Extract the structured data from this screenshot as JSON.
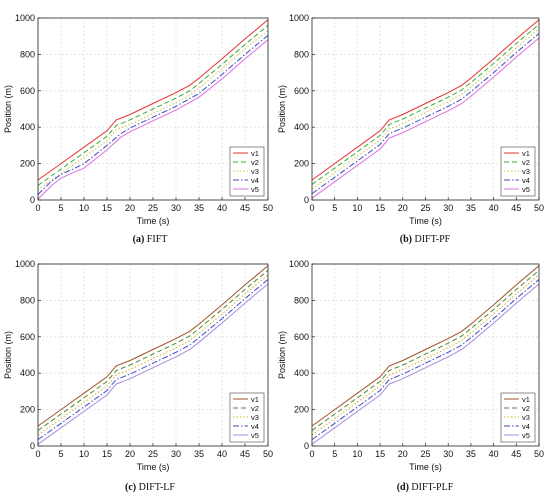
{
  "chart_data": [
    {
      "type": "line",
      "caption_letter": "(a)",
      "caption_name": "FIFT",
      "xlabel": "Time (s)",
      "ylabel": "Position (m)",
      "xlim": [
        0,
        50
      ],
      "ylim": [
        0,
        1000
      ],
      "xticks": [
        0,
        5,
        10,
        15,
        20,
        25,
        30,
        35,
        40,
        45,
        50
      ],
      "yticks": [
        0,
        200,
        400,
        600,
        800,
        1000
      ],
      "grid": true,
      "legend": "bottom-right",
      "series": [
        {
          "name": "v1",
          "color": "#e8322f",
          "dash": "solid",
          "x": [
            0,
            5,
            10,
            15,
            17,
            20,
            25,
            30,
            33,
            35,
            40,
            45,
            50
          ],
          "y": [
            110,
            200,
            290,
            380,
            440,
            470,
            530,
            590,
            630,
            670,
            775,
            885,
            990
          ]
        },
        {
          "name": "v2",
          "color": "#3aaa35",
          "dash": "dash",
          "x": [
            0,
            5,
            10,
            15,
            17,
            20,
            25,
            30,
            33,
            35,
            40,
            45,
            50
          ],
          "y": [
            80,
            170,
            260,
            350,
            410,
            440,
            500,
            560,
            600,
            640,
            745,
            855,
            960
          ]
        },
        {
          "name": "v3",
          "color": "#c8c838",
          "dash": "dot",
          "x": [
            0,
            5,
            10,
            15,
            17,
            20,
            25,
            30,
            33,
            35,
            40,
            45,
            50
          ],
          "y": [
            55,
            145,
            235,
            325,
            385,
            415,
            475,
            535,
            575,
            615,
            720,
            830,
            930
          ]
        },
        {
          "name": "v4",
          "color": "#3a4bd0",
          "dash": "dashdot",
          "x": [
            0,
            3,
            5,
            8,
            10,
            15,
            18,
            20,
            25,
            30,
            35,
            40,
            45,
            50
          ],
          "y": [
            30,
            105,
            140,
            175,
            200,
            300,
            365,
            395,
            455,
            515,
            585,
            690,
            800,
            905
          ]
        },
        {
          "name": "v5",
          "color": "#e070e0",
          "dash": "solid",
          "x": [
            0,
            3,
            5,
            8,
            10,
            15,
            18,
            20,
            25,
            30,
            35,
            40,
            45,
            50
          ],
          "y": [
            5,
            80,
            120,
            155,
            175,
            275,
            345,
            375,
            435,
            495,
            565,
            665,
            775,
            880
          ]
        }
      ]
    },
    {
      "type": "line",
      "caption_letter": "(b)",
      "caption_name": "DIFT-PF",
      "xlabel": "Time (s)",
      "ylabel": "Position (m)",
      "xlim": [
        0,
        50
      ],
      "ylim": [
        0,
        1000
      ],
      "xticks": [
        0,
        5,
        10,
        15,
        20,
        25,
        30,
        35,
        40,
        45,
        50
      ],
      "yticks": [
        0,
        200,
        400,
        600,
        800,
        1000
      ],
      "grid": true,
      "legend": "bottom-right",
      "series": [
        {
          "name": "v1",
          "color": "#e8322f",
          "dash": "solid",
          "x": [
            0,
            5,
            10,
            15,
            17,
            20,
            25,
            30,
            33,
            35,
            40,
            45,
            50
          ],
          "y": [
            110,
            200,
            290,
            380,
            440,
            470,
            530,
            590,
            630,
            670,
            775,
            885,
            990
          ]
        },
        {
          "name": "v2",
          "color": "#3aaa35",
          "dash": "dash",
          "x": [
            0,
            5,
            10,
            15,
            17,
            20,
            25,
            30,
            33,
            35,
            40,
            45,
            50
          ],
          "y": [
            85,
            175,
            265,
            355,
            415,
            445,
            505,
            565,
            605,
            645,
            750,
            860,
            965
          ]
        },
        {
          "name": "v3",
          "color": "#c8c838",
          "dash": "dot",
          "x": [
            0,
            5,
            10,
            15,
            17,
            20,
            25,
            30,
            33,
            35,
            40,
            45,
            50
          ],
          "y": [
            60,
            150,
            240,
            330,
            390,
            420,
            480,
            540,
            580,
            620,
            725,
            835,
            940
          ]
        },
        {
          "name": "v4",
          "color": "#3a4bd0",
          "dash": "dashdot",
          "x": [
            0,
            5,
            10,
            15,
            17,
            20,
            25,
            30,
            33,
            35,
            40,
            45,
            50
          ],
          "y": [
            35,
            125,
            215,
            305,
            365,
            395,
            455,
            515,
            555,
            595,
            700,
            810,
            915
          ]
        },
        {
          "name": "v5",
          "color": "#e070e0",
          "dash": "solid",
          "x": [
            0,
            5,
            10,
            15,
            17,
            20,
            25,
            30,
            33,
            35,
            40,
            45,
            50
          ],
          "y": [
            10,
            100,
            190,
            280,
            340,
            370,
            430,
            490,
            530,
            570,
            675,
            785,
            890
          ]
        }
      ]
    },
    {
      "type": "line",
      "caption_letter": "(c)",
      "caption_name": "DIFT-LF",
      "xlabel": "Time (s)",
      "ylabel": "Position (m)",
      "xlim": [
        0,
        50
      ],
      "ylim": [
        0,
        1000
      ],
      "xticks": [
        0,
        5,
        10,
        15,
        20,
        25,
        30,
        35,
        40,
        45,
        50
      ],
      "yticks": [
        0,
        200,
        400,
        600,
        800,
        1000
      ],
      "grid": true,
      "legend": "bottom-right",
      "series": [
        {
          "name": "v1",
          "color": "#a0522d",
          "dash": "solid",
          "x": [
            0,
            5,
            10,
            15,
            17,
            20,
            25,
            30,
            33,
            35,
            40,
            45,
            50
          ],
          "y": [
            110,
            200,
            290,
            380,
            440,
            470,
            530,
            590,
            630,
            670,
            775,
            885,
            990
          ]
        },
        {
          "name": "v2",
          "color": "#4c8c2b",
          "dash": "dash",
          "x": [
            0,
            5,
            10,
            15,
            17,
            20,
            25,
            30,
            33,
            35,
            40,
            45,
            50
          ],
          "y": [
            85,
            175,
            265,
            355,
            415,
            445,
            505,
            565,
            605,
            645,
            750,
            860,
            965
          ]
        },
        {
          "name": "v3",
          "color": "#d4b020",
          "dash": "dot",
          "x": [
            0,
            5,
            10,
            15,
            17,
            20,
            25,
            30,
            33,
            35,
            40,
            45,
            50
          ],
          "y": [
            60,
            150,
            240,
            330,
            390,
            420,
            480,
            540,
            580,
            620,
            725,
            835,
            940
          ]
        },
        {
          "name": "v4",
          "color": "#3a4bd0",
          "dash": "dashdot",
          "x": [
            0,
            5,
            10,
            15,
            17,
            20,
            25,
            30,
            33,
            35,
            40,
            45,
            50
          ],
          "y": [
            35,
            125,
            215,
            305,
            365,
            395,
            455,
            515,
            555,
            595,
            700,
            810,
            915
          ]
        },
        {
          "name": "v5",
          "color": "#b088e0",
          "dash": "solid",
          "x": [
            0,
            5,
            10,
            15,
            17,
            20,
            25,
            30,
            33,
            35,
            40,
            45,
            50
          ],
          "y": [
            10,
            100,
            190,
            280,
            340,
            370,
            430,
            490,
            530,
            570,
            675,
            785,
            890
          ]
        }
      ]
    },
    {
      "type": "line",
      "caption_letter": "(d)",
      "caption_name": "DIFT-PLF",
      "xlabel": "Time (s)",
      "ylabel": "Position (m)",
      "xlim": [
        0,
        50
      ],
      "ylim": [
        0,
        1000
      ],
      "xticks": [
        0,
        5,
        10,
        15,
        20,
        25,
        30,
        35,
        40,
        45,
        50
      ],
      "yticks": [
        0,
        200,
        400,
        600,
        800,
        1000
      ],
      "grid": true,
      "legend": "bottom-right",
      "series": [
        {
          "name": "v1",
          "color": "#a0522d",
          "dash": "solid",
          "x": [
            0,
            5,
            10,
            15,
            17,
            20,
            25,
            30,
            33,
            35,
            40,
            45,
            50
          ],
          "y": [
            110,
            200,
            290,
            380,
            440,
            470,
            530,
            590,
            630,
            670,
            775,
            885,
            990
          ]
        },
        {
          "name": "v2",
          "color": "#4c8c2b",
          "dash": "dash",
          "x": [
            0,
            5,
            10,
            15,
            17,
            20,
            25,
            30,
            33,
            35,
            40,
            45,
            50
          ],
          "y": [
            85,
            175,
            265,
            355,
            415,
            445,
            505,
            565,
            605,
            645,
            750,
            860,
            965
          ]
        },
        {
          "name": "v3",
          "color": "#d4b020",
          "dash": "dot",
          "x": [
            0,
            5,
            10,
            15,
            17,
            20,
            25,
            30,
            33,
            35,
            40,
            45,
            50
          ],
          "y": [
            60,
            150,
            240,
            330,
            390,
            420,
            480,
            540,
            580,
            620,
            725,
            835,
            940
          ]
        },
        {
          "name": "v4",
          "color": "#3a4bd0",
          "dash": "dashdot",
          "x": [
            0,
            5,
            10,
            15,
            17,
            20,
            25,
            30,
            33,
            35,
            40,
            45,
            50
          ],
          "y": [
            35,
            125,
            215,
            305,
            365,
            395,
            455,
            515,
            555,
            595,
            700,
            810,
            915
          ]
        },
        {
          "name": "v5",
          "color": "#b088e0",
          "dash": "solid",
          "x": [
            0,
            5,
            10,
            15,
            17,
            20,
            25,
            30,
            33,
            35,
            40,
            45,
            50
          ],
          "y": [
            10,
            100,
            190,
            280,
            340,
            370,
            430,
            490,
            530,
            570,
            675,
            785,
            890
          ]
        }
      ]
    }
  ]
}
